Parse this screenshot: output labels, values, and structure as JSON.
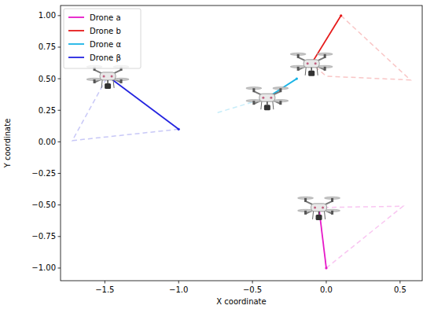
{
  "chart_data": {
    "type": "line",
    "x_label": "X coordinate",
    "y_label": "Y coordinate",
    "legend": "upper left",
    "grid": false,
    "xlim": [
      -1.8,
      0.65
    ],
    "ylim": [
      -1.1,
      1.08
    ],
    "xticks": [
      {
        "value": -1.5,
        "label": "−1.5"
      },
      {
        "value": -1.0,
        "label": "−1.0"
      },
      {
        "value": -0.5,
        "label": "−0.5"
      },
      {
        "value": 0.0,
        "label": "0.0"
      },
      {
        "value": 0.5,
        "label": "0.5"
      }
    ],
    "yticks": [
      {
        "value": 1.0,
        "label": "1.00"
      },
      {
        "value": 0.75,
        "label": "0.75"
      },
      {
        "value": 0.5,
        "label": "0.50"
      },
      {
        "value": 0.25,
        "label": "0.25"
      },
      {
        "value": 0.0,
        "label": "0.00"
      },
      {
        "value": -0.25,
        "label": "−0.25"
      },
      {
        "value": -0.5,
        "label": "−0.50"
      },
      {
        "value": -0.75,
        "label": "−0.75"
      },
      {
        "value": -1.0,
        "label": "−1.00"
      }
    ],
    "series": [
      {
        "name": "Drone a",
        "color": "#e619c8",
        "marker": "drone",
        "line_style": "solid",
        "x": [
          0.0,
          -0.05
        ],
        "y": [
          -1.0,
          -0.52
        ],
        "trail_x": [
          0.0,
          0.52,
          -0.05
        ],
        "trail_y": [
          -1.0,
          -0.51,
          -0.52
        ]
      },
      {
        "name": "Drone b",
        "color": "#e61a1a",
        "marker": "drone",
        "line_style": "solid",
        "x": [
          0.1,
          -0.1
        ],
        "y": [
          1.0,
          0.62
        ],
        "trail_x": [
          0.1,
          0.57,
          0.0,
          -0.1
        ],
        "trail_y": [
          1.0,
          0.49,
          0.52,
          0.62
        ]
      },
      {
        "name": "Drone α",
        "color": "#1ab4e6",
        "marker": "drone",
        "line_style": "solid",
        "x": [
          -0.2,
          -0.4
        ],
        "y": [
          0.5,
          0.35
        ],
        "trail_x": [
          -0.4,
          -0.74
        ],
        "trail_y": [
          0.35,
          0.23
        ]
      },
      {
        "name": "Drone β",
        "color": "#2424e0",
        "marker": "drone",
        "line_style": "solid",
        "x": [
          -1.0,
          -1.48
        ],
        "y": [
          0.1,
          0.52
        ],
        "trail_x": [
          -1.0,
          -1.72,
          -1.48
        ],
        "trail_y": [
          0.1,
          0.01,
          0.52
        ]
      }
    ]
  }
}
